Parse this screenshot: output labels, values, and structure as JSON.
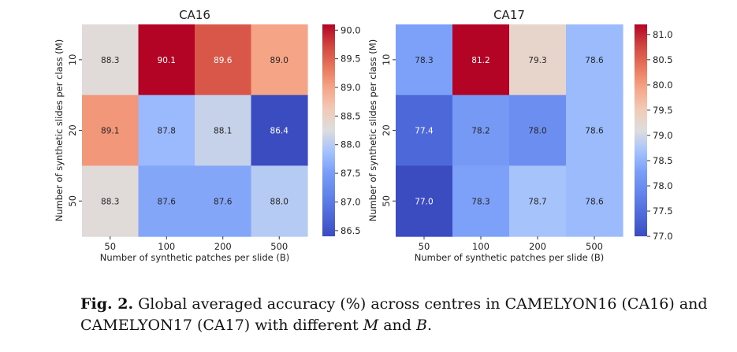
{
  "chart_data": [
    {
      "type": "heatmap",
      "title": "CA16",
      "xlabel": "Number of synthetic patches per slide (B)",
      "ylabel": "Number of synthetic slides per class (M)",
      "x_categories": [
        "50",
        "100",
        "200",
        "500"
      ],
      "y_categories": [
        "10",
        "20",
        "50"
      ],
      "values": [
        [
          88.3,
          90.1,
          89.6,
          89.0
        ],
        [
          89.1,
          87.8,
          88.1,
          86.4
        ],
        [
          88.3,
          87.6,
          87.6,
          88.0
        ]
      ],
      "cell_labels": [
        [
          "88.3",
          "90.1",
          "89.6",
          "89.0"
        ],
        [
          "89.1",
          "87.8",
          "88.1",
          "86.4"
        ],
        [
          "88.3",
          "87.6",
          "87.6",
          "88.0"
        ]
      ],
      "colormap": "coolwarm",
      "colorbar": {
        "vmin": 86.4,
        "vmax": 90.1,
        "ticks": [
          "86.5",
          "87.0",
          "87.5",
          "88.0",
          "88.5",
          "89.0",
          "89.5",
          "90.0"
        ]
      }
    },
    {
      "type": "heatmap",
      "title": "CA17",
      "xlabel": "Number of synthetic patches per slide (B)",
      "ylabel": "Number of synthetic slides per class (M)",
      "x_categories": [
        "50",
        "100",
        "200",
        "500"
      ],
      "y_categories": [
        "10",
        "20",
        "50"
      ],
      "values": [
        [
          78.3,
          81.2,
          79.3,
          78.6
        ],
        [
          77.4,
          78.2,
          78.0,
          78.6
        ],
        [
          77.0,
          78.3,
          78.7,
          78.6
        ]
      ],
      "cell_labels": [
        [
          "78.3",
          "81.2",
          "79.3",
          "78.6"
        ],
        [
          "77.4",
          "78.2",
          "78.0",
          "78.6"
        ],
        [
          "77.0",
          "78.3",
          "78.7",
          "78.6"
        ]
      ],
      "colormap": "coolwarm",
      "colorbar": {
        "vmin": 77.0,
        "vmax": 81.2,
        "ticks": [
          "77.0",
          "77.5",
          "78.0",
          "78.5",
          "79.0",
          "79.5",
          "80.0",
          "80.5",
          "81.0"
        ]
      }
    }
  ],
  "caption": {
    "label": "Fig. 2.",
    "text_1": " Global averaged accuracy (%) across centres in CAMELYON16 (CA16) and CAMELYON17 (CA17) with different ",
    "var_m": "M",
    "text_2": " and ",
    "var_b": "B",
    "text_3": "."
  }
}
